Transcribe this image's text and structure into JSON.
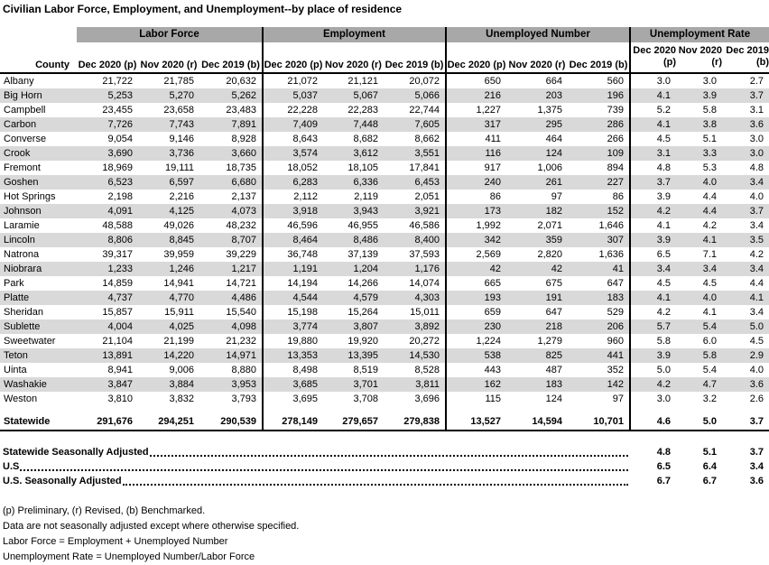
{
  "title": "Civilian Labor Force, Employment, and Unemployment--by place of residence",
  "colors": {
    "band_gray": "#a8a8a8",
    "stripe_gray": "#d9d9d9",
    "border_black": "#000000"
  },
  "table": {
    "county_header": "County",
    "groups": [
      {
        "label": "Labor Force",
        "columns": [
          "Dec 2020 (p)",
          "Nov 2020 (r)",
          "Dec 2019 (b)"
        ]
      },
      {
        "label": "Employment",
        "columns": [
          "Dec 2020 (p)",
          "Nov 2020 (r)",
          "Dec 2019 (b)"
        ]
      },
      {
        "label": "Unemployed Number",
        "columns": [
          "Dec 2020 (p)",
          "Nov 2020 (r)",
          "Dec 2019 (b)"
        ]
      },
      {
        "label": "Unemployment Rate",
        "columns_two_line": [
          [
            "Dec 2020",
            "(p)"
          ],
          [
            "Nov 2020",
            "(r)"
          ],
          [
            "Dec 2019",
            "(b)"
          ]
        ]
      }
    ],
    "rows": [
      {
        "county": "Albany",
        "values": [
          "21,722",
          "21,785",
          "20,632",
          "21,072",
          "21,121",
          "20,072",
          "650",
          "664",
          "560",
          "3.0",
          "3.0",
          "2.7"
        ]
      },
      {
        "county": "Big Horn",
        "values": [
          "5,253",
          "5,270",
          "5,262",
          "5,037",
          "5,067",
          "5,066",
          "216",
          "203",
          "196",
          "4.1",
          "3.9",
          "3.7"
        ]
      },
      {
        "county": "Campbell",
        "values": [
          "23,455",
          "23,658",
          "23,483",
          "22,228",
          "22,283",
          "22,744",
          "1,227",
          "1,375",
          "739",
          "5.2",
          "5.8",
          "3.1"
        ]
      },
      {
        "county": "Carbon",
        "values": [
          "7,726",
          "7,743",
          "7,891",
          "7,409",
          "7,448",
          "7,605",
          "317",
          "295",
          "286",
          "4.1",
          "3.8",
          "3.6"
        ]
      },
      {
        "county": "Converse",
        "values": [
          "9,054",
          "9,146",
          "8,928",
          "8,643",
          "8,682",
          "8,662",
          "411",
          "464",
          "266",
          "4.5",
          "5.1",
          "3.0"
        ]
      },
      {
        "county": "Crook",
        "values": [
          "3,690",
          "3,736",
          "3,660",
          "3,574",
          "3,612",
          "3,551",
          "116",
          "124",
          "109",
          "3.1",
          "3.3",
          "3.0"
        ]
      },
      {
        "county": "Fremont",
        "values": [
          "18,969",
          "19,111",
          "18,735",
          "18,052",
          "18,105",
          "17,841",
          "917",
          "1,006",
          "894",
          "4.8",
          "5.3",
          "4.8"
        ]
      },
      {
        "county": "Goshen",
        "values": [
          "6,523",
          "6,597",
          "6,680",
          "6,283",
          "6,336",
          "6,453",
          "240",
          "261",
          "227",
          "3.7",
          "4.0",
          "3.4"
        ]
      },
      {
        "county": "Hot Springs",
        "values": [
          "2,198",
          "2,216",
          "2,137",
          "2,112",
          "2,119",
          "2,051",
          "86",
          "97",
          "86",
          "3.9",
          "4.4",
          "4.0"
        ]
      },
      {
        "county": "Johnson",
        "values": [
          "4,091",
          "4,125",
          "4,073",
          "3,918",
          "3,943",
          "3,921",
          "173",
          "182",
          "152",
          "4.2",
          "4.4",
          "3.7"
        ]
      },
      {
        "county": "Laramie",
        "values": [
          "48,588",
          "49,026",
          "48,232",
          "46,596",
          "46,955",
          "46,586",
          "1,992",
          "2,071",
          "1,646",
          "4.1",
          "4.2",
          "3.4"
        ]
      },
      {
        "county": "Lincoln",
        "values": [
          "8,806",
          "8,845",
          "8,707",
          "8,464",
          "8,486",
          "8,400",
          "342",
          "359",
          "307",
          "3.9",
          "4.1",
          "3.5"
        ]
      },
      {
        "county": "Natrona",
        "values": [
          "39,317",
          "39,959",
          "39,229",
          "36,748",
          "37,139",
          "37,593",
          "2,569",
          "2,820",
          "1,636",
          "6.5",
          "7.1",
          "4.2"
        ]
      },
      {
        "county": "Niobrara",
        "values": [
          "1,233",
          "1,246",
          "1,217",
          "1,191",
          "1,204",
          "1,176",
          "42",
          "42",
          "41",
          "3.4",
          "3.4",
          "3.4"
        ]
      },
      {
        "county": "Park",
        "values": [
          "14,859",
          "14,941",
          "14,721",
          "14,194",
          "14,266",
          "14,074",
          "665",
          "675",
          "647",
          "4.5",
          "4.5",
          "4.4"
        ]
      },
      {
        "county": "Platte",
        "values": [
          "4,737",
          "4,770",
          "4,486",
          "4,544",
          "4,579",
          "4,303",
          "193",
          "191",
          "183",
          "4.1",
          "4.0",
          "4.1"
        ]
      },
      {
        "county": "Sheridan",
        "values": [
          "15,857",
          "15,911",
          "15,540",
          "15,198",
          "15,264",
          "15,011",
          "659",
          "647",
          "529",
          "4.2",
          "4.1",
          "3.4"
        ]
      },
      {
        "county": "Sublette",
        "values": [
          "4,004",
          "4,025",
          "4,098",
          "3,774",
          "3,807",
          "3,892",
          "230",
          "218",
          "206",
          "5.7",
          "5.4",
          "5.0"
        ]
      },
      {
        "county": "Sweetwater",
        "values": [
          "21,104",
          "21,199",
          "21,232",
          "19,880",
          "19,920",
          "20,272",
          "1,224",
          "1,279",
          "960",
          "5.8",
          "6.0",
          "4.5"
        ]
      },
      {
        "county": "Teton",
        "values": [
          "13,891",
          "14,220",
          "14,971",
          "13,353",
          "13,395",
          "14,530",
          "538",
          "825",
          "441",
          "3.9",
          "5.8",
          "2.9"
        ]
      },
      {
        "county": "Uinta",
        "values": [
          "8,941",
          "9,006",
          "8,880",
          "8,498",
          "8,519",
          "8,528",
          "443",
          "487",
          "352",
          "5.0",
          "5.4",
          "4.0"
        ]
      },
      {
        "county": "Washakie",
        "values": [
          "3,847",
          "3,884",
          "3,953",
          "3,685",
          "3,701",
          "3,811",
          "162",
          "183",
          "142",
          "4.2",
          "4.7",
          "3.6"
        ]
      },
      {
        "county": "Weston",
        "values": [
          "3,810",
          "3,832",
          "3,793",
          "3,695",
          "3,708",
          "3,696",
          "115",
          "124",
          "97",
          "3.0",
          "3.2",
          "2.6"
        ]
      }
    ],
    "statewide": {
      "county": "Statewide",
      "values": [
        "291,676",
        "294,251",
        "290,539",
        "278,149",
        "279,657",
        "279,838",
        "13,527",
        "14,594",
        "10,701",
        "4.6",
        "5.0",
        "3.7"
      ]
    }
  },
  "summary_rows": [
    {
      "label": "Statewide Seasonally Adjusted",
      "values": [
        "4.8",
        "5.1",
        "3.7"
      ]
    },
    {
      "label": "U.S",
      "values": [
        "6.5",
        "6.4",
        "3.4"
      ]
    },
    {
      "label": "U.S. Seasonally Adjusted",
      "values": [
        "6.7",
        "6.7",
        "3.6"
      ]
    }
  ],
  "footnotes": [
    "(p) Preliminary, (r) Revised, (b) Benchmarked.",
    "Data are not seasonally adjusted except where otherwise specified.",
    "Labor Force = Employment + Unemployed Number",
    "Unemployment Rate = Unemployed Number/Labor Force"
  ]
}
